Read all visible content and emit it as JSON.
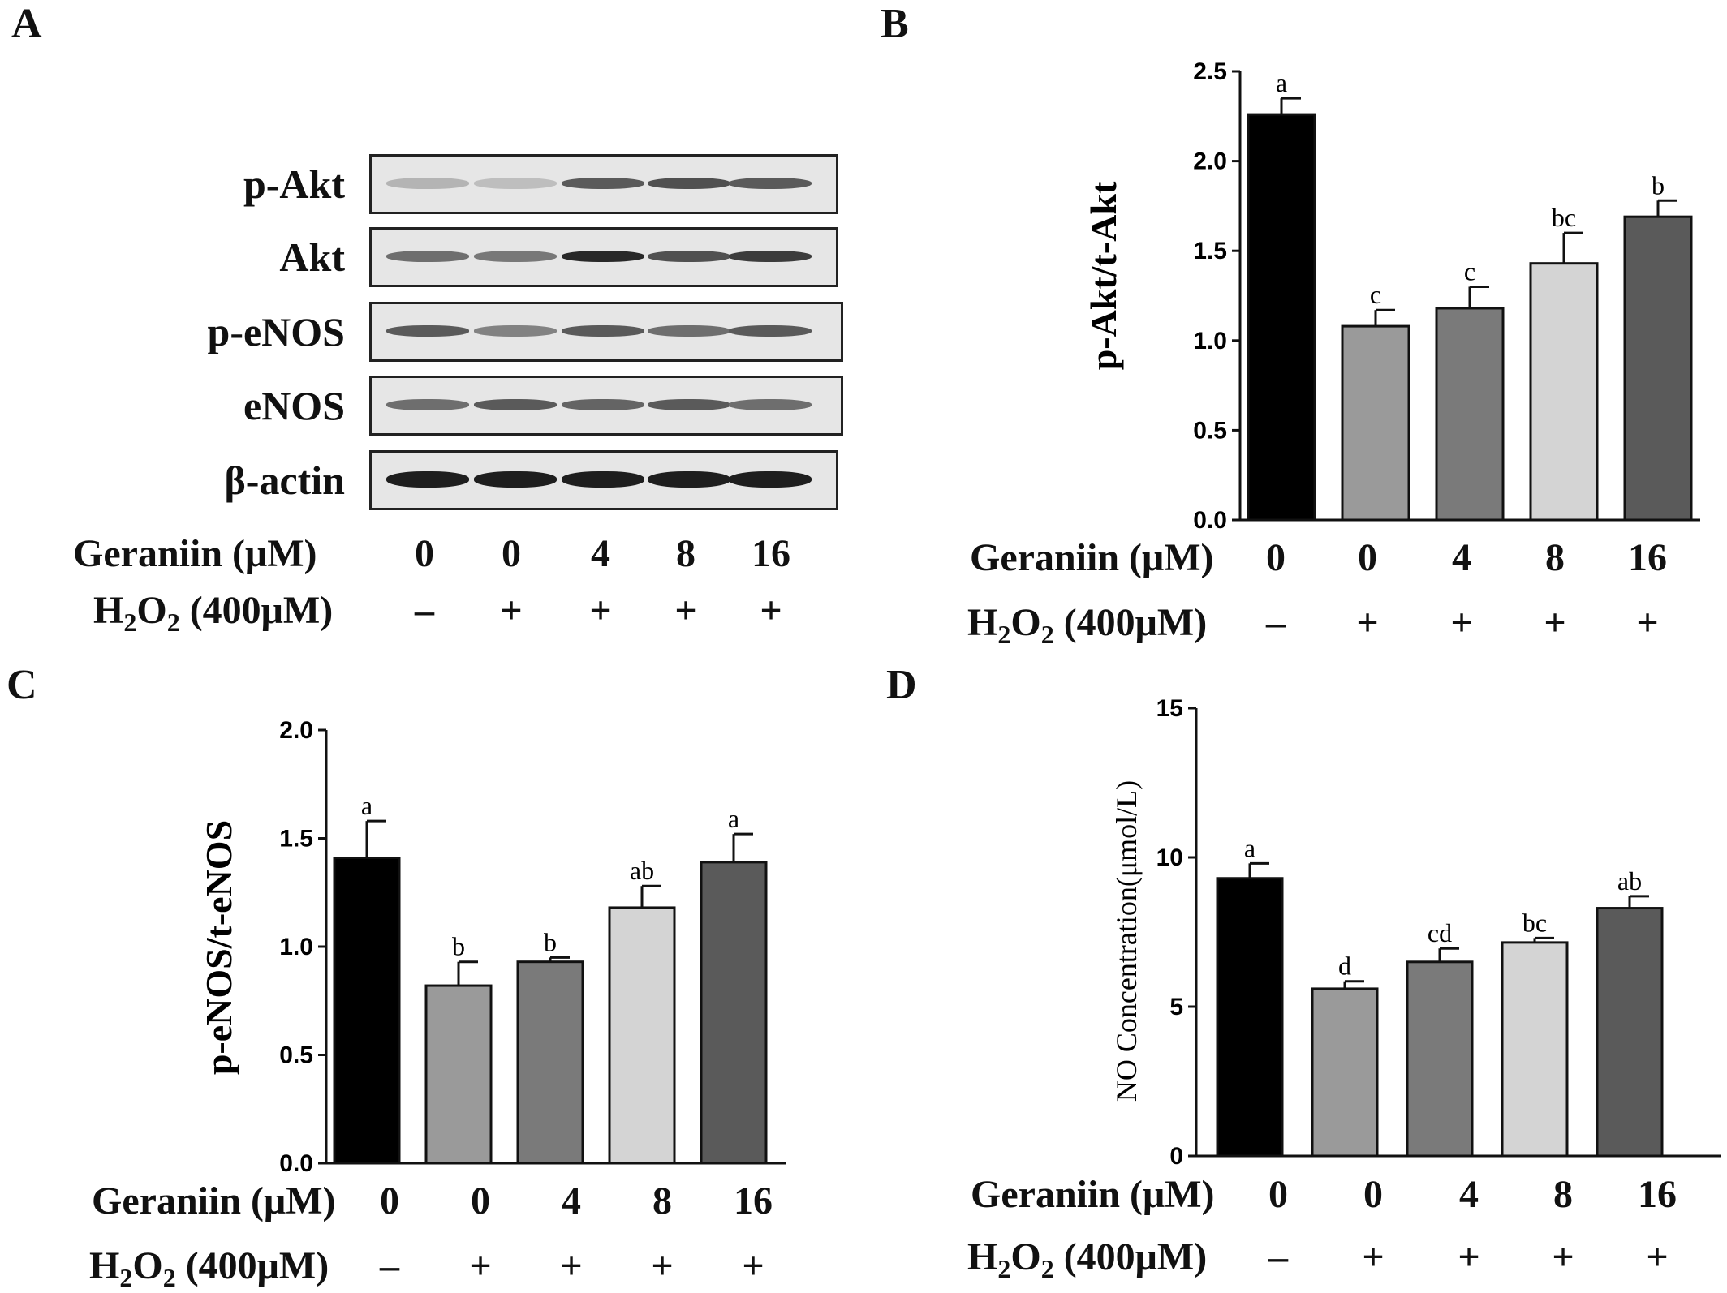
{
  "panel_letters": [
    "A",
    "B",
    "C",
    "D"
  ],
  "blot": {
    "rows": [
      "p-Akt",
      "Akt",
      "p-eNOS",
      "eNOS",
      "β-actin"
    ],
    "geraniin_label": "Geraniin (μM)",
    "h2o2_label_prefix": "H",
    "h2o2_label_sub1": "2",
    "h2o2_label_mid": "O",
    "h2o2_label_sub2": "2",
    "h2o2_label_suffix": " (400μM)",
    "geraniin_values": [
      "0",
      "0",
      "4",
      "8",
      "16"
    ],
    "h2o2_values": [
      "–",
      "+",
      "+",
      "+",
      "+"
    ],
    "band_intensity": [
      [
        0.25,
        0.2,
        0.7,
        0.75,
        0.7
      ],
      [
        0.6,
        0.55,
        0.95,
        0.75,
        0.85
      ],
      [
        0.7,
        0.5,
        0.7,
        0.6,
        0.7
      ],
      [
        0.6,
        0.7,
        0.65,
        0.7,
        0.6
      ],
      [
        1.0,
        1.0,
        1.0,
        1.0,
        1.0
      ]
    ]
  },
  "conditions": {
    "geraniin_label": "Geraniin (μM)",
    "h2o2_label_prefix": "H",
    "h2o2_label_sub1": "2",
    "h2o2_label_mid": "O",
    "h2o2_label_sub2": "2",
    "h2o2_label_suffix": " (400μM)",
    "geraniin_values": [
      "0",
      "0",
      "4",
      "8",
      "16"
    ],
    "h2o2_values": [
      "–",
      "+",
      "+",
      "+",
      "+"
    ]
  },
  "colors": {
    "bars": [
      "#000000",
      "#9a9a9a",
      "#7a7a7a",
      "#d4d4d4",
      "#5a5a5a"
    ],
    "axis": "#111111"
  },
  "chart_data": [
    {
      "panel": "B",
      "type": "bar",
      "ylabel": "p-Akt/t-Akt",
      "ylim": [
        0,
        2.5
      ],
      "yticks": [
        "0.0",
        "0.5",
        "1.0",
        "1.5",
        "2.0",
        "2.5"
      ],
      "ytick_values": [
        0,
        0.5,
        1.0,
        1.5,
        2.0,
        2.5
      ],
      "values": [
        2.26,
        1.08,
        1.18,
        1.43,
        1.69
      ],
      "errors": [
        0.09,
        0.09,
        0.12,
        0.17,
        0.09
      ],
      "letters": [
        "a",
        "c",
        "c",
        "bc",
        "b"
      ]
    },
    {
      "panel": "C",
      "type": "bar",
      "ylabel": "p-eNOS/t-eNOS",
      "ylim": [
        0,
        2.0
      ],
      "yticks": [
        "0.0",
        "0.5",
        "1.0",
        "1.5",
        "2.0"
      ],
      "ytick_values": [
        0,
        0.5,
        1.0,
        1.5,
        2.0
      ],
      "values": [
        1.41,
        0.82,
        0.93,
        1.18,
        1.39
      ],
      "errors": [
        0.17,
        0.11,
        0.02,
        0.1,
        0.13
      ],
      "letters": [
        "a",
        "b",
        "b",
        "ab",
        "a"
      ]
    },
    {
      "panel": "D",
      "type": "bar",
      "ylabel": "NO Concentration(μmol/L)",
      "ylim": [
        0,
        15
      ],
      "yticks": [
        "0",
        "5",
        "10",
        "15"
      ],
      "ytick_values": [
        0,
        5,
        10,
        15
      ],
      "values": [
        9.3,
        5.6,
        6.5,
        7.15,
        8.3
      ],
      "errors": [
        0.5,
        0.25,
        0.45,
        0.15,
        0.4
      ],
      "letters": [
        "a",
        "d",
        "cd",
        "bc",
        "ab"
      ]
    }
  ]
}
